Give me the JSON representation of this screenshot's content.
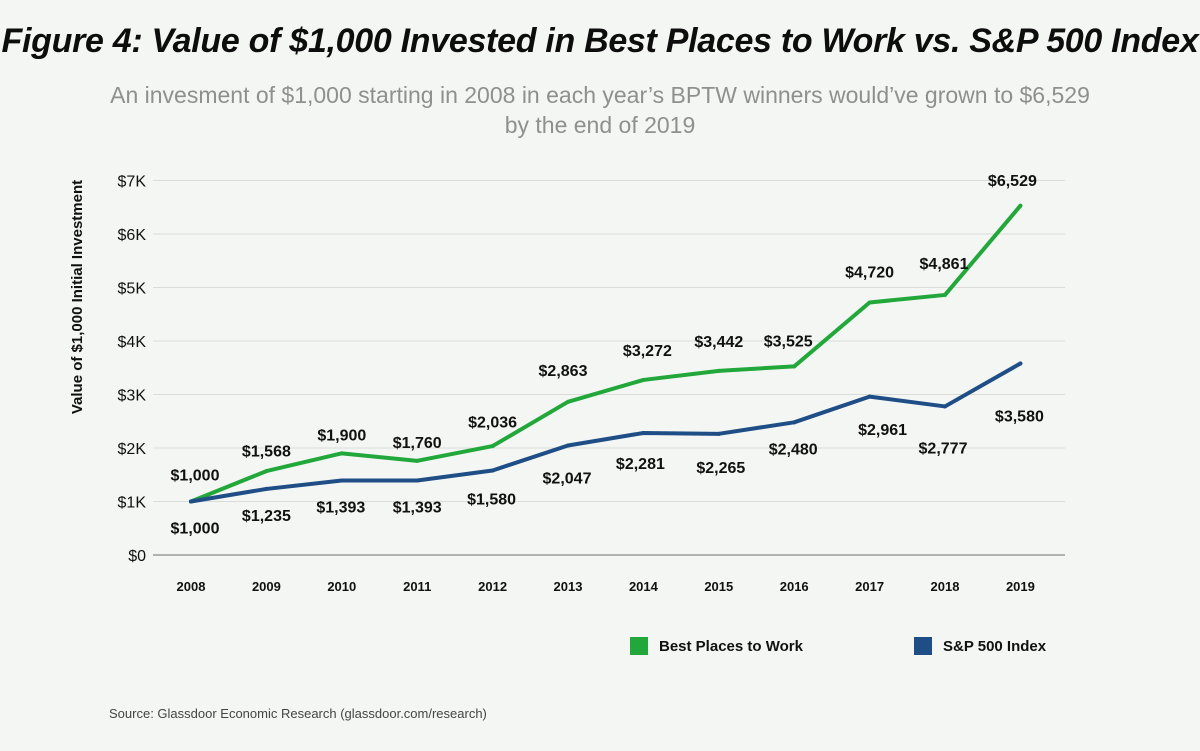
{
  "title": "Figure 4: Value of $1,000 Invested in Best Places to Work vs. S&P 500 Index",
  "subtitle": "An invesment of $1,000 starting in 2008 in each year’s BPTW winners would’ve grown to $6,529 by the end of 2019",
  "source": "Source: Glassdoor Economic Research (glassdoor.com/research)",
  "legend": [
    {
      "label": "Best Places to Work",
      "icon": "green-square-swatch",
      "color": "#22a83a"
    },
    {
      "label": "S&P 500 Index",
      "icon": "blue-square-swatch",
      "color": "#1f4e87"
    }
  ],
  "chart_data": {
    "type": "line",
    "title": "Figure 4: Value of $1,000 Invested in Best Places to Work vs. S&P 500 Index",
    "xlabel": "",
    "ylabel": "Value of $1,000 Initial Investment",
    "x": [
      2008,
      2009,
      2010,
      2011,
      2012,
      2013,
      2014,
      2015,
      2016,
      2017,
      2018,
      2019
    ],
    "ylim": [
      0,
      7000
    ],
    "yticks": [
      0,
      1000,
      2000,
      3000,
      4000,
      5000,
      6000,
      7000
    ],
    "ytick_labels": [
      "$0",
      "$1K",
      "$2K",
      "$3K",
      "$4K",
      "$5K",
      "$6K",
      "$7K"
    ],
    "grid": true,
    "legend_position": "bottom-right",
    "series": [
      {
        "name": "Best Places to Work",
        "color": "#22a83a",
        "values": [
          1000,
          1568,
          1900,
          1760,
          2036,
          2863,
          3272,
          3442,
          3525,
          4720,
          4861,
          6529
        ],
        "labels": [
          "$1,000",
          "$1,568",
          "$1,900",
          "$1,760",
          "$2,036",
          "$2,863",
          "$3,272",
          "$3,442",
          "$3,525",
          "$4,720",
          "$4,861",
          "$6,529"
        ]
      },
      {
        "name": "S&P 500 Index",
        "color": "#1f4e87",
        "values": [
          1000,
          1235,
          1393,
          1393,
          1580,
          2047,
          2281,
          2265,
          2480,
          2961,
          2777,
          3580
        ],
        "labels": [
          "$1,000",
          "$1,235",
          "$1,393",
          "$1,393",
          "$1,580",
          "$2,047",
          "$2,281",
          "$2,265",
          "$2,480",
          "$2,961",
          "$2,777",
          "$3,580"
        ]
      }
    ]
  }
}
